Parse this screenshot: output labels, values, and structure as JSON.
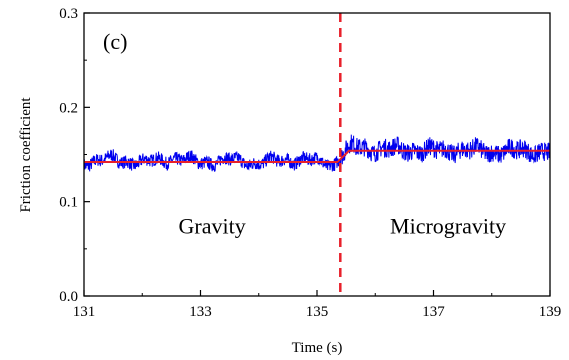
{
  "chart_data": {
    "type": "line",
    "title": "",
    "panel_label": "(c)",
    "xlabel": "Time (s)",
    "ylabel": "Friction coefficient",
    "xlim": [
      131,
      139
    ],
    "ylim": [
      0.0,
      0.3
    ],
    "x_ticks": [
      131,
      133,
      135,
      137,
      139
    ],
    "x_tick_labels": [
      "131",
      "133",
      "135",
      "137",
      "139"
    ],
    "y_ticks": [
      0.0,
      0.1,
      0.2,
      0.3
    ],
    "y_tick_labels": [
      "0.0",
      "0.1",
      "0.2",
      "0.3"
    ],
    "grid": false,
    "series": [
      {
        "role": "raw friction signal",
        "color": "#0000ee",
        "x": [
          131.0,
          131.5,
          132.0,
          132.5,
          133.0,
          133.5,
          134.0,
          134.5,
          135.0,
          135.3,
          135.45,
          135.6,
          136.0,
          136.5,
          137.0,
          137.5,
          138.0,
          138.5,
          139.0
        ],
        "values": [
          0.142,
          0.145,
          0.141,
          0.146,
          0.142,
          0.144,
          0.141,
          0.145,
          0.143,
          0.14,
          0.152,
          0.158,
          0.156,
          0.155,
          0.154,
          0.155,
          0.153,
          0.154,
          0.153
        ]
      },
      {
        "role": "mean friction",
        "color": "#e8202a",
        "x": [
          131.0,
          135.35,
          135.55,
          139.0
        ],
        "values": [
          0.142,
          0.142,
          0.154,
          0.154
        ]
      }
    ],
    "divider": {
      "x": 135.4,
      "color": "#e8202a",
      "style": "dashed"
    },
    "annotations": [
      {
        "text": "Gravity",
        "x": 133.2,
        "y": 0.075
      },
      {
        "text": "Microgravity",
        "x": 137.25,
        "y": 0.075
      }
    ]
  }
}
